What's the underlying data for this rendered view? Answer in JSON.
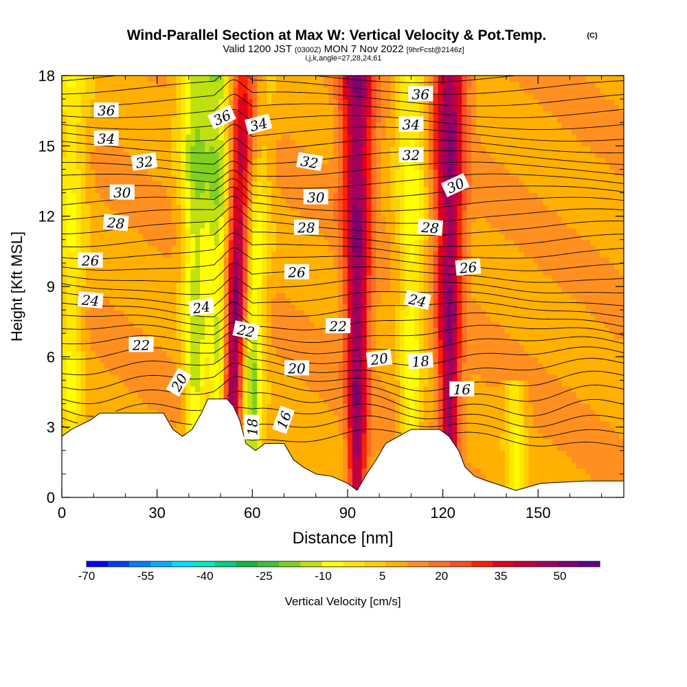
{
  "header": {
    "title": "Wind-Parallel Section at Max W: Vertical Velocity & Pot.Temp.",
    "copyright": "(C)",
    "valid_prefix": "Valid 1200 JST",
    "valid_zulu": "(0300Z)",
    "valid_date": "MON 7 Nov 2022",
    "forecast_info": "[9hrFcst@2146z]",
    "section_params": "i,j,k,angle=27,28,24,61"
  },
  "chart_data": {
    "type": "heatmap",
    "xlabel": "Distance [nm]",
    "ylabel": "Height [Kft MSL]",
    "xlim": [
      0,
      177
    ],
    "ylim": [
      0,
      18
    ],
    "x_ticks": [
      "0",
      "30",
      "60",
      "90",
      "120",
      "150"
    ],
    "y_ticks": [
      "0",
      "3",
      "6",
      "9",
      "12",
      "15",
      "18"
    ],
    "contour_variable": "potential temperature",
    "contour_labels": [
      "16",
      "18",
      "20",
      "22",
      "24",
      "26",
      "28",
      "30",
      "32",
      "34",
      "36"
    ],
    "terrain_top_kft": [
      [
        0,
        2.6
      ],
      [
        3,
        2.9
      ],
      [
        6,
        3.1
      ],
      [
        9,
        3.3
      ],
      [
        12,
        3.6
      ],
      [
        32,
        3.6
      ],
      [
        35,
        2.9
      ],
      [
        38,
        2.6
      ],
      [
        41,
        2.9
      ],
      [
        44,
        3.6
      ],
      [
        46,
        4.2
      ],
      [
        52,
        4.2
      ],
      [
        54,
        3.9
      ],
      [
        56,
        3.3
      ],
      [
        58,
        2.3
      ],
      [
        61,
        2.0
      ],
      [
        64,
        2.3
      ],
      [
        70,
        2.3
      ],
      [
        73,
        1.6
      ],
      [
        76,
        1.3
      ],
      [
        80,
        1.0
      ],
      [
        85,
        0.9
      ],
      [
        90,
        0.6
      ],
      [
        93,
        0.3
      ],
      [
        96,
        1.0
      ],
      [
        99,
        1.6
      ],
      [
        102,
        2.3
      ],
      [
        106,
        2.6
      ],
      [
        110,
        2.9
      ],
      [
        119,
        2.9
      ],
      [
        122,
        2.6
      ],
      [
        125,
        2.0
      ],
      [
        127,
        1.3
      ],
      [
        130,
        0.9
      ],
      [
        134,
        0.7
      ],
      [
        143,
        0.3
      ],
      [
        151,
        0.6
      ],
      [
        165,
        0.7
      ],
      [
        177,
        0.7
      ]
    ],
    "colorbar": {
      "label": "Vertical Velocity [cm/s]",
      "tick_labels": [
        "-70",
        "-55",
        "-40",
        "-25",
        "-10",
        "5",
        "20",
        "35",
        "50"
      ],
      "colors": [
        "#0000ff",
        "#0040ff",
        "#0080ff",
        "#00b0ff",
        "#00e0ff",
        "#00e8c0",
        "#00d080",
        "#10b840",
        "#40c040",
        "#80d020",
        "#c0e010",
        "#ffff00",
        "#ffe800",
        "#ffd000",
        "#ffb000",
        "#ff9020",
        "#ff7020",
        "#ff5020",
        "#ff2000",
        "#e00020",
        "#c00040",
        "#a00060",
        "#800070",
        "#60008c"
      ]
    },
    "velocity_bands": [
      {
        "x": 3,
        "sign": "down",
        "strength": 0.5,
        "ztop": 18
      },
      {
        "x": 42,
        "sign": "down",
        "strength": 0.8,
        "ztop": 18
      },
      {
        "x": 50,
        "sign": "down",
        "strength": 0.9,
        "ztop": 18
      },
      {
        "x": 55,
        "sign": "up",
        "strength": 1.0,
        "ztop": 18
      },
      {
        "x": 60,
        "sign": "down",
        "strength": 0.9,
        "ztop": 18
      },
      {
        "x": 93,
        "sign": "up",
        "strength": 0.8,
        "ztop": 18
      },
      {
        "x": 110,
        "sign": "down",
        "strength": 0.6,
        "ztop": 18
      },
      {
        "x": 122,
        "sign": "up",
        "strength": 0.8,
        "ztop": 18
      },
      {
        "x": 143,
        "sign": "down",
        "strength": 0.5,
        "ztop": 5
      }
    ]
  }
}
